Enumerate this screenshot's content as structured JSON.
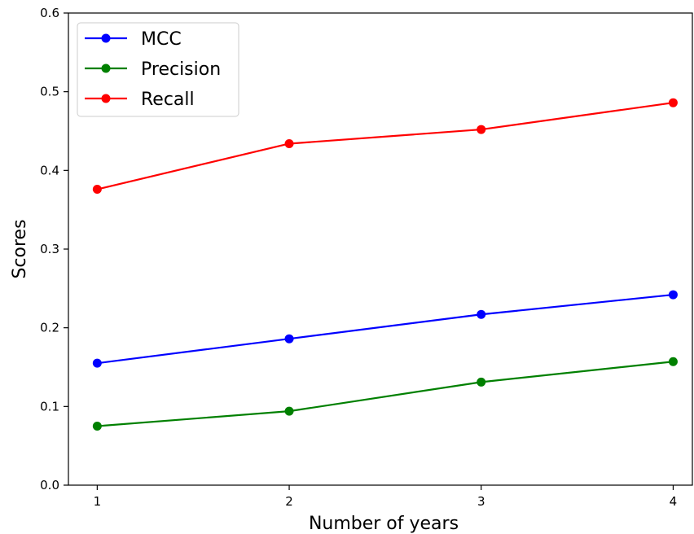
{
  "chart_data": {
    "type": "line",
    "title": "",
    "xlabel": "Number of years",
    "ylabel": "Scores",
    "x": [
      1,
      2,
      3,
      4
    ],
    "x_ticks": [
      "1",
      "2",
      "3",
      "4"
    ],
    "ylim": [
      0.0,
      0.6
    ],
    "y_ticks": [
      "0.0",
      "0.1",
      "0.2",
      "0.3",
      "0.4",
      "0.5",
      "0.6"
    ],
    "grid": false,
    "legend_position": "top-left",
    "series": [
      {
        "name": "MCC",
        "color": "#0000ff",
        "values": [
          0.155,
          0.186,
          0.217,
          0.242
        ]
      },
      {
        "name": "Precision",
        "color": "#008000",
        "values": [
          0.075,
          0.094,
          0.131,
          0.157
        ]
      },
      {
        "name": "Recall",
        "color": "#ff0000",
        "values": [
          0.376,
          0.434,
          0.452,
          0.486
        ]
      }
    ]
  }
}
